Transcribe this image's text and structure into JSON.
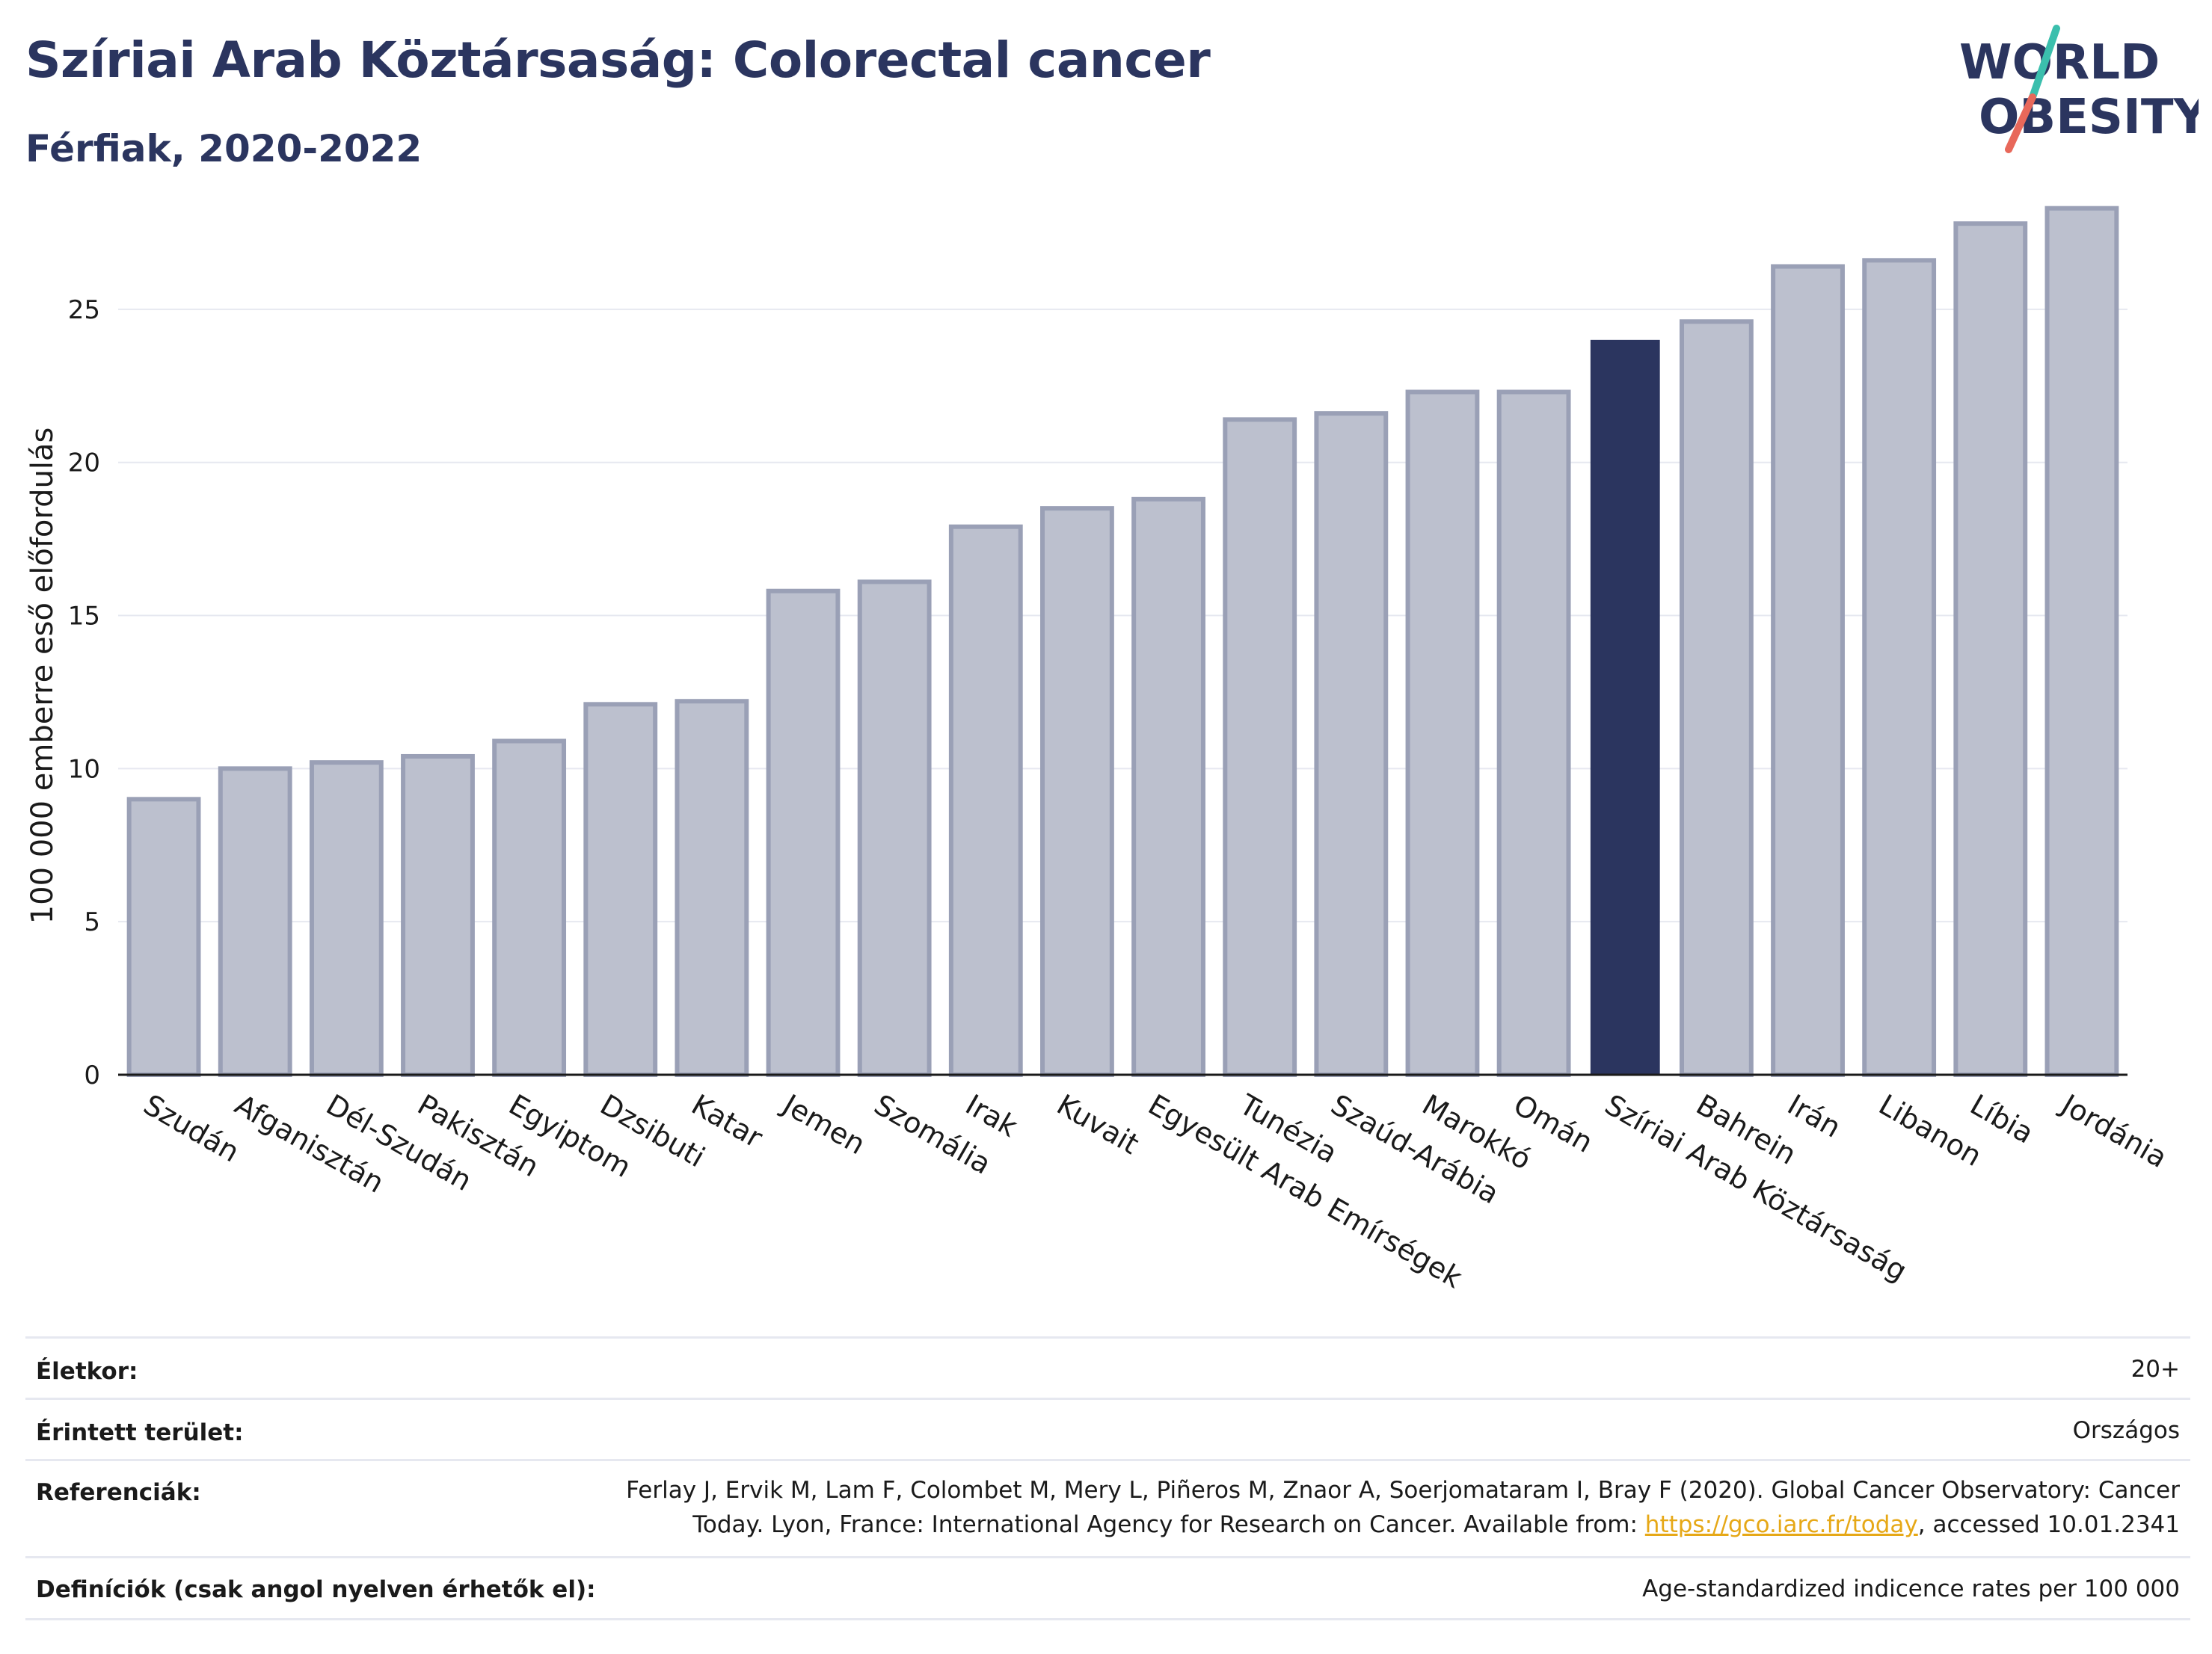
{
  "header": {
    "title": "Szíriai Arab Köztársaság: Colorectal cancer",
    "subtitle": "Férfiak, 2020-2022"
  },
  "logo": {
    "line1": "WORLD",
    "line2": "OBESITY",
    "colors": {
      "text": "#2b355f",
      "slash_top": "#3bbfad",
      "slash_bottom": "#e8685a"
    }
  },
  "colors": {
    "bar": "#bcc0ce",
    "bar_edge": "#9aa0b6",
    "highlight": "#2b355f",
    "grid": "#e6e8f0",
    "axis": "#1a1a1a"
  },
  "chart_data": {
    "type": "bar",
    "title": "",
    "xlabel": "",
    "ylabel": "100 000 emberre eső előfordulás",
    "ylim": [
      0,
      29
    ],
    "yticks": [
      0,
      5,
      10,
      15,
      20,
      25
    ],
    "grid": true,
    "highlight": "Szíriai Arab Köztársaság",
    "categories": [
      "Szudán",
      "Afganisztán",
      "Dél-Szudán",
      "Pakisztán",
      "Egyiptom",
      "Dzsibuti",
      "Katar",
      "Jemen",
      "Szomália",
      "Irak",
      "Kuvait",
      "Egyesült Arab Emírségek",
      "Tunézia",
      "Szaúd-Arábia",
      "Marokkó",
      "Omán",
      "Szíriai Arab Köztársaság",
      "Bahrein",
      "Irán",
      "Libanon",
      "Líbia",
      "Jordánia"
    ],
    "values": [
      9.0,
      10.0,
      10.2,
      10.4,
      10.9,
      12.1,
      12.2,
      15.8,
      16.1,
      17.9,
      18.5,
      18.8,
      21.4,
      21.6,
      22.3,
      22.3,
      24.0,
      24.6,
      26.4,
      26.6,
      27.8,
      28.3
    ]
  },
  "footer": {
    "rows": [
      {
        "label": "Életkor:",
        "value": "20+"
      },
      {
        "label": "Érintett terület:",
        "value": "Országos"
      },
      {
        "label": "Referenciák:",
        "value_line1": "Ferlay J, Ervik M, Lam F, Colombet M, Mery L, Piñeros M, Znaor A, Soerjomataram I, Bray F (2020). Global Cancer Observatory: Cancer",
        "value_line2_prefix": "Today. Lyon, France: International Agency for Research on Cancer. Available from: ",
        "link": "https://gco.iarc.fr/today",
        "value_line2_suffix": ", accessed 10.01.2341"
      },
      {
        "label": "Definíciók (csak angol nyelven érhetők el):",
        "value": "Age-standardized indicence rates per 100 000"
      }
    ]
  }
}
